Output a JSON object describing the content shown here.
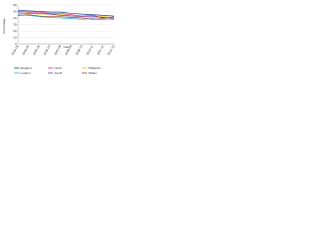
{
  "chart_data": {
    "type": "line",
    "y_label": "Percentage",
    "x_label": "Year",
    "categories": [
      "2003-04",
      "2004-05",
      "2005-06",
      "2006-07",
      "2007-08",
      "2008-09",
      "2009-10",
      "2010-11",
      "2011-12",
      "2012-13"
    ],
    "series": [
      {
        "name": "England",
        "color": "#1f3f8f",
        "values": [
          52,
          51,
          50,
          49,
          49,
          47,
          46,
          45,
          44,
          43
        ]
      },
      {
        "name": "North",
        "color": "#d62c8a",
        "values": [
          50,
          49,
          49,
          47,
          47,
          45,
          43,
          44,
          40,
          41
        ]
      },
      {
        "name": "Midlands",
        "color": "#e0c020",
        "values": [
          47,
          48,
          46,
          46,
          45,
          44,
          42,
          41,
          43,
          40
        ]
      },
      {
        "name": "London",
        "color": "#35b6d6",
        "values": [
          45,
          44,
          42,
          41,
          40,
          39,
          38,
          39,
          37,
          38
        ]
      },
      {
        "name": "South",
        "color": "#7b3f9e",
        "values": [
          48,
          47,
          47,
          46,
          44,
          43,
          42,
          42,
          41,
          39
        ]
      },
      {
        "name": "Wales",
        "color": "#8a4a2a",
        "values": [
          44,
          45,
          43,
          42,
          42,
          41,
          40,
          38,
          39,
          42
        ]
      }
    ],
    "ylim": [
      0,
      60
    ],
    "yticks": [
      0,
      10,
      20,
      30,
      40,
      50,
      60
    ],
    "grid": true,
    "legend": "bottom"
  }
}
